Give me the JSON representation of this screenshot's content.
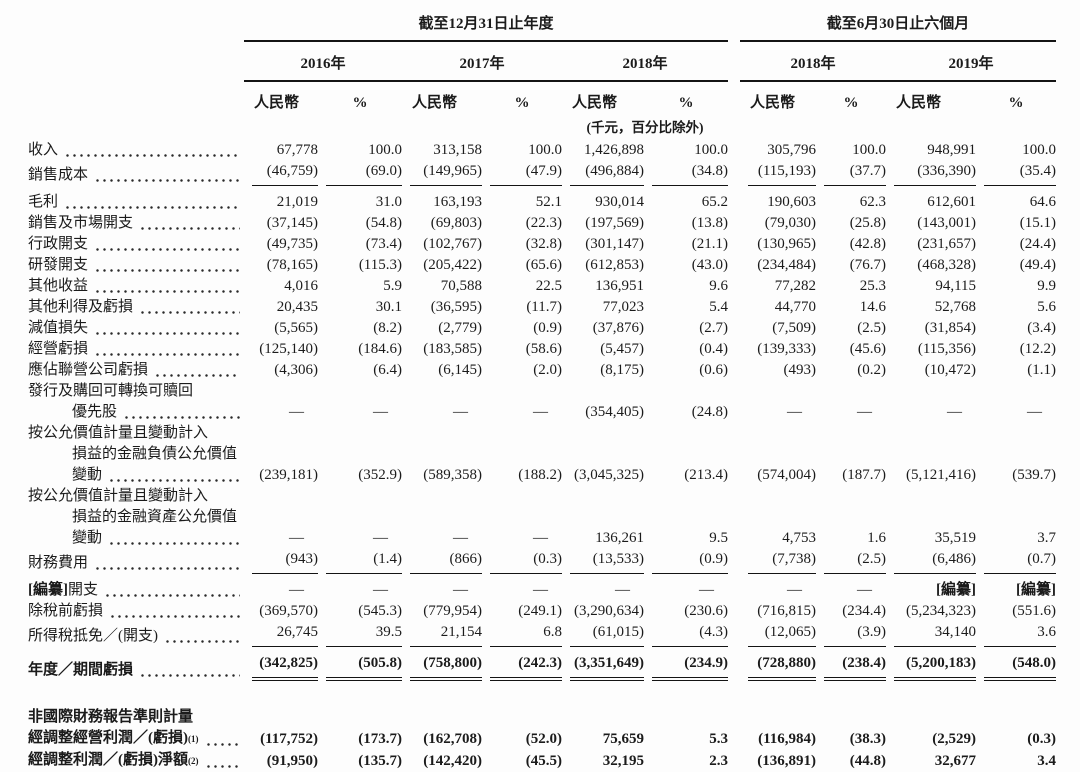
{
  "table": {
    "header": {
      "group1": {
        "title": "截至12月31日止年度",
        "years": [
          "2016年",
          "2017年",
          "2018年"
        ]
      },
      "group2": {
        "title": "截至6月30日止六個月",
        "years": [
          "2018年",
          "2019年"
        ]
      },
      "currency_label": "人民幣",
      "percent_label": "%",
      "unit_note": "(千元，百分比除外)"
    },
    "rows": [
      {
        "label": "收入",
        "values": [
          "67,778",
          "100.0",
          "313,158",
          "100.0",
          "1,426,898",
          "100.0",
          "305,796",
          "100.0",
          "948,991",
          "100.0"
        ]
      },
      {
        "label": "銷售成本",
        "rule": "single",
        "values": [
          "(46,759)",
          "(69.0)",
          "(149,965)",
          "(47.9)",
          "(496,884)",
          "(34.8)",
          "(115,193)",
          "(37.7)",
          "(336,390)",
          "(35.4)"
        ]
      },
      {
        "label": "毛利",
        "pt": true,
        "values": [
          "21,019",
          "31.0",
          "163,193",
          "52.1",
          "930,014",
          "65.2",
          "190,603",
          "62.3",
          "612,601",
          "64.6"
        ]
      },
      {
        "label": "銷售及市場開支",
        "values": [
          "(37,145)",
          "(54.8)",
          "(69,803)",
          "(22.3)",
          "(197,569)",
          "(13.8)",
          "(79,030)",
          "(25.8)",
          "(143,001)",
          "(15.1)"
        ]
      },
      {
        "label": "行政開支",
        "values": [
          "(49,735)",
          "(73.4)",
          "(102,767)",
          "(32.8)",
          "(301,147)",
          "(21.1)",
          "(130,965)",
          "(42.8)",
          "(231,657)",
          "(24.4)"
        ]
      },
      {
        "label": "研發開支",
        "values": [
          "(78,165)",
          "(115.3)",
          "(205,422)",
          "(65.6)",
          "(612,853)",
          "(43.0)",
          "(234,484)",
          "(76.7)",
          "(468,328)",
          "(49.4)"
        ]
      },
      {
        "label": "其他收益",
        "values": [
          "4,016",
          "5.9",
          "70,588",
          "22.5",
          "136,951",
          "9.6",
          "77,282",
          "25.3",
          "94,115",
          "9.9"
        ]
      },
      {
        "label": "其他利得及虧損",
        "values": [
          "20,435",
          "30.1",
          "(36,595)",
          "(11.7)",
          "77,023",
          "5.4",
          "44,770",
          "14.6",
          "52,768",
          "5.6"
        ]
      },
      {
        "label": "減值損失",
        "values": [
          "(5,565)",
          "(8.2)",
          "(2,779)",
          "(0.9)",
          "(37,876)",
          "(2.7)",
          "(7,509)",
          "(2.5)",
          "(31,854)",
          "(3.4)"
        ]
      },
      {
        "label": "經營虧損",
        "values": [
          "(125,140)",
          "(184.6)",
          "(183,585)",
          "(58.6)",
          "(5,457)",
          "(0.4)",
          "(139,333)",
          "(45.6)",
          "(115,356)",
          "(12.2)"
        ]
      },
      {
        "label": "應佔聯營公司虧損",
        "values": [
          "(4,306)",
          "(6.4)",
          "(6,145)",
          "(2.0)",
          "(8,175)",
          "(0.6)",
          "(493)",
          "(0.2)",
          "(10,472)",
          "(1.1)"
        ]
      },
      {
        "label": "發行及購回可轉換可贖回優先股",
        "lines": [
          "發行及購回可轉換可贖回",
          "優先股"
        ],
        "values": [
          "—",
          "—",
          "—",
          "—",
          "(354,405)",
          "(24.8)",
          "—",
          "—",
          "—",
          "—"
        ]
      },
      {
        "label": "按公允價值計量且變動計入損益的金融負債公允價值變動",
        "lines": [
          "按公允價值計量且變動計入",
          "損益的金融負債公允價值",
          "變動"
        ],
        "values": [
          "(239,181)",
          "(352.9)",
          "(589,358)",
          "(188.2)",
          "(3,045,325)",
          "(213.4)",
          "(574,004)",
          "(187.7)",
          "(5,121,416)",
          "(539.7)"
        ]
      },
      {
        "label": "按公允價值計量且變動計入損益的金融資產公允價值變動",
        "lines": [
          "按公允價值計量且變動計入",
          "損益的金融資產公允價值",
          "變動"
        ],
        "values": [
          "—",
          "—",
          "—",
          "—",
          "136,261",
          "9.5",
          "4,753",
          "1.6",
          "35,519",
          "3.7"
        ]
      },
      {
        "label": "財務費用",
        "rule": "single",
        "values": [
          "(943)",
          "(1.4)",
          "(866)",
          "(0.3)",
          "(13,533)",
          "(0.9)",
          "(7,738)",
          "(2.5)",
          "(6,486)",
          "(0.7)"
        ]
      },
      {
        "label": "開支",
        "label_bold_prefix": "[編纂]",
        "pt": true,
        "values": [
          "—",
          "—",
          "—",
          "—",
          "—",
          "—",
          "—",
          "—",
          "[編纂]",
          "[編纂]"
        ]
      },
      {
        "label": "除稅前虧損",
        "values": [
          "(369,570)",
          "(545.3)",
          "(779,954)",
          "(249.1)",
          "(3,290,634)",
          "(230.6)",
          "(716,815)",
          "(234.4)",
          "(5,234,323)",
          "(551.6)"
        ]
      },
      {
        "label": "所得稅抵免／(開支)",
        "rule": "single",
        "values": [
          "26,745",
          "39.5",
          "21,154",
          "6.8",
          "(61,015)",
          "(4.3)",
          "(12,065)",
          "(3.9)",
          "34,140",
          "3.6"
        ]
      },
      {
        "label": "年度／期間虧損",
        "bold": true,
        "pt": true,
        "rule": "double",
        "values": [
          "(342,825)",
          "(505.8)",
          "(758,800)",
          "(242.3)",
          "(3,351,649)",
          "(234.9)",
          "(728,880)",
          "(238.4)",
          "(5,200,183)",
          "(548.0)"
        ]
      },
      {
        "spacer": true
      },
      {
        "label": "非國際財務報告準則計量",
        "bold": true,
        "values": null
      },
      {
        "label": "經調整經營利潤／(虧損)",
        "sup": "(1)",
        "bold": true,
        "values": [
          "(117,752)",
          "(173.7)",
          "(162,708)",
          "(52.0)",
          "75,659",
          "5.3",
          "(116,984)",
          "(38.3)",
          "(2,529)",
          "(0.3)"
        ]
      },
      {
        "label": "經調整利潤／(虧損)淨額",
        "sup": "(2)",
        "bold": true,
        "values": [
          "(91,950)",
          "(135.7)",
          "(142,420)",
          "(45.5)",
          "32,195",
          "2.3",
          "(136,891)",
          "(44.8)",
          "32,677",
          "3.4"
        ]
      }
    ]
  }
}
